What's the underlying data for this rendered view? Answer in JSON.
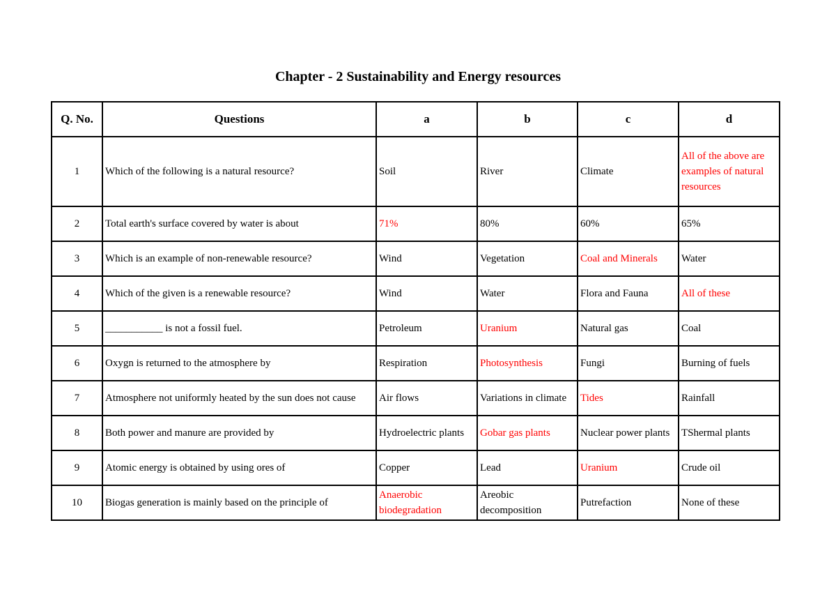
{
  "title": "Chapter - 2 Sustainability and Energy resources",
  "headers": [
    "Q. No.",
    "Questions",
    "a",
    "b",
    "c",
    "d"
  ],
  "answer_color": "#ff0000",
  "rows": [
    {
      "no": "1",
      "q": "Which of the following is a natural resource?",
      "opts": [
        "Soil",
        "River",
        "Climate",
        "All of the above are examples of natural resources"
      ],
      "correct": 3
    },
    {
      "no": "2",
      "q": "Total earth's surface covered by water is about",
      "opts": [
        "71%",
        "80%",
        "60%",
        "65%"
      ],
      "correct": 0
    },
    {
      "no": "3",
      "q": "Which is an example of non-renewable resource?",
      "opts": [
        "Wind",
        "Vegetation",
        "Coal and Minerals",
        "Water"
      ],
      "correct": 2
    },
    {
      "no": "4",
      "q": "Which of the given is a renewable resource?",
      "opts": [
        "Wind",
        "Water",
        "Flora and Fauna",
        "All of these"
      ],
      "correct": 3
    },
    {
      "no": "5",
      "q": "___________ is not a fossil fuel.",
      "opts": [
        "Petroleum",
        "Uranium",
        "Natural gas",
        "Coal"
      ],
      "correct": 1
    },
    {
      "no": "6",
      "q": "Oxygn is returned to the atmosphere by",
      "opts": [
        "Respiration",
        "Photosynthesis",
        "Fungi",
        "Burning of fuels"
      ],
      "correct": 1
    },
    {
      "no": "7",
      "q": "Atmosphere not uniformly heated by the sun does not cause",
      "opts": [
        "Air flows",
        "Variations in climate",
        "Tides",
        "Rainfall"
      ],
      "correct": 2
    },
    {
      "no": "8",
      "q": "Both power and manure are provided by",
      "opts": [
        "Hydroelectric plants",
        "Gobar gas plants",
        "Nuclear power plants",
        "TShermal plants"
      ],
      "correct": 1
    },
    {
      "no": "9",
      "q": "Atomic energy is obtained by using ores of",
      "opts": [
        "Copper",
        "Lead",
        "Uranium",
        "Crude oil"
      ],
      "correct": 2
    },
    {
      "no": "10",
      "q": "Biogas generation is mainly based on the principle of",
      "opts": [
        "Anaerobic biodegradation",
        "Areobic decomposition",
        "Putrefaction",
        "None of these"
      ],
      "correct": 0
    }
  ]
}
